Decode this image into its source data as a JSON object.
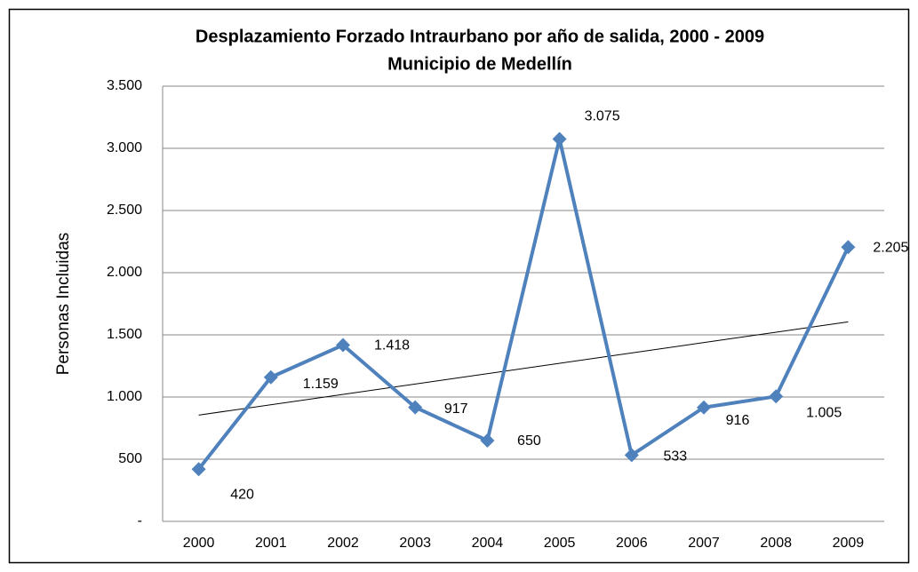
{
  "chart_data": {
    "type": "line",
    "title": "Desplazamiento Forzado Intraurbano por año de salida, 2000 - 2009",
    "subtitle": "Municipio de Medellín",
    "y_label": "Personas Incluidas",
    "categories": [
      "2000",
      "2001",
      "2002",
      "2003",
      "2004",
      "2005",
      "2006",
      "2007",
      "2008",
      "2009"
    ],
    "series": [
      {
        "name": "Personas Incluidas",
        "color": "#4f81bd",
        "values": [
          420,
          1159,
          1418,
          917,
          650,
          3075,
          533,
          916,
          1005,
          2205
        ],
        "value_labels": [
          "420",
          "1.159",
          "1.418",
          "917",
          "650",
          "3.075",
          "533",
          "916",
          "1.005",
          "2.205"
        ]
      }
    ],
    "trendline": "linear",
    "ylim": [
      0,
      3500
    ],
    "yticks": [
      {
        "value": 0,
        "label": "-"
      },
      500,
      {
        "value": 1000,
        "label": "1.000"
      },
      {
        "value": 1500,
        "label": "1.500"
      },
      {
        "value": 2000,
        "label": "2.000"
      },
      {
        "value": 2500,
        "label": "2.500"
      },
      {
        "value": 3000,
        "label": "3.000"
      },
      {
        "value": 3500,
        "label": "3.500"
      }
    ],
    "grid": true
  }
}
